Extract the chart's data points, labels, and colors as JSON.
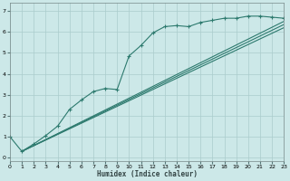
{
  "xlabel": "Humidex (Indice chaleur)",
  "bg_color": "#cce8e8",
  "line_color": "#2d7a6e",
  "grid_color": "#aacccc",
  "xlim": [
    0,
    23
  ],
  "ylim": [
    -0.15,
    7.4
  ],
  "xticks": [
    0,
    1,
    2,
    3,
    4,
    5,
    6,
    7,
    8,
    9,
    10,
    11,
    12,
    13,
    14,
    15,
    16,
    17,
    18,
    19,
    20,
    21,
    22,
    23
  ],
  "yticks": [
    0,
    1,
    2,
    3,
    4,
    5,
    6,
    7
  ],
  "line1_x": [
    0,
    1,
    2,
    3,
    4,
    5,
    6,
    7,
    8,
    9,
    10,
    11,
    12,
    13,
    14,
    15,
    16,
    17,
    18,
    19,
    20,
    21,
    22,
    23
  ],
  "line1_y": [
    1.0,
    0.3,
    0.65,
    1.05,
    1.5,
    2.3,
    2.75,
    3.15,
    3.3,
    3.25,
    4.85,
    5.35,
    5.95,
    6.25,
    6.3,
    6.25,
    6.45,
    6.55,
    6.65,
    6.65,
    6.75,
    6.75,
    6.7,
    6.65
  ]
}
